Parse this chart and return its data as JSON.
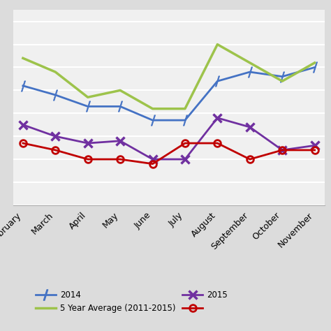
{
  "months": [
    "February",
    "March",
    "April",
    "May",
    "June",
    "July",
    "August",
    "September",
    "October",
    "November"
  ],
  "y_2014": [
    72,
    68,
    63,
    63,
    57,
    57,
    74,
    78,
    76,
    80
  ],
  "y_5yr": [
    84,
    78,
    67,
    70,
    62,
    62,
    90,
    82,
    74,
    82
  ],
  "y_2015": [
    55,
    50,
    47,
    48,
    40,
    40,
    58,
    54,
    44,
    46
  ],
  "y_2013": [
    47,
    44,
    40,
    40,
    38,
    47,
    47,
    40,
    44,
    44
  ],
  "color_2014": "#4472C4",
  "color_5yr": "#9DC34B",
  "color_2015": "#7030A0",
  "color_2013": "#C00000",
  "fig_bg": "#DCDCDC",
  "ax_bg": "#F0F0F0",
  "grid_color": "#FFFFFF",
  "legend_2014": "2014",
  "legend_5yr": "5 Year Average (2011-2015)",
  "legend_2015": "2015",
  "legend_2013": "",
  "ylim": [
    20,
    105
  ],
  "label_fontsize": 9,
  "legend_fontsize": 8.5
}
